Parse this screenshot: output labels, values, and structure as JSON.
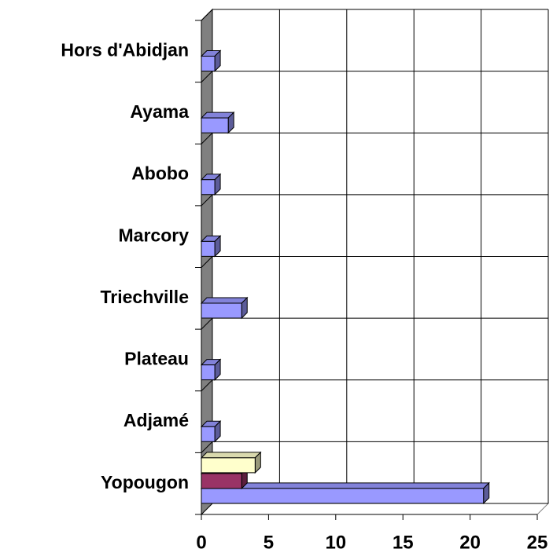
{
  "chart_data": {
    "type": "bar",
    "orientation": "horizontal",
    "categories": [
      "Yopougon",
      "Adjamé",
      "Plateau",
      "Triechville",
      "Marcory",
      "Abobo",
      "Ayama",
      "Hors d'Abidjan"
    ],
    "series": [
      {
        "color": "#9999ff",
        "values": [
          21,
          1,
          1,
          3,
          1,
          1,
          2,
          1
        ]
      },
      {
        "color": "#993366",
        "values": [
          3,
          null,
          null,
          null,
          null,
          null,
          null,
          null
        ]
      },
      {
        "color": "#ffffcc",
        "values": [
          4,
          null,
          null,
          null,
          null,
          null,
          null,
          null
        ]
      }
    ],
    "xlim": [
      0,
      25
    ],
    "xticks": [
      0,
      5,
      10,
      15,
      20,
      25
    ],
    "grid": true
  }
}
